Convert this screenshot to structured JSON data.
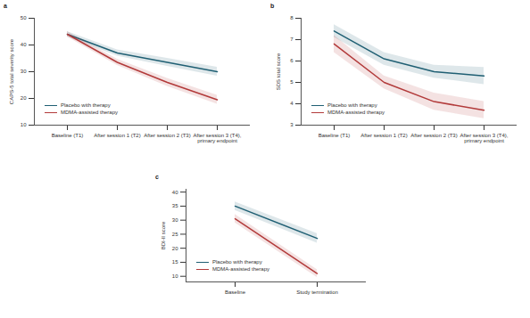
{
  "chart_data": [
    {
      "type": "line",
      "title": "a",
      "categories": [
        "Baseline (T1)",
        "After session 1 (T2)",
        "After session 2 (T3)",
        "After session 3 (T4), primary endpoint"
      ],
      "y_label": "CAPS-5 total severity score",
      "ylim": [
        10,
        50
      ],
      "yticks": [
        10,
        20,
        30,
        40,
        50
      ],
      "grid": false,
      "legend": "bottom-left",
      "series": [
        {
          "name": "Placebo with therapy",
          "color": "#1f5f73",
          "values": [
            44,
            37,
            33.5,
            30
          ],
          "lower": [
            43,
            35.8,
            32,
            28.3
          ],
          "upper": [
            45,
            38.2,
            35,
            31.7
          ]
        },
        {
          "name": "MDMA-assisted therapy",
          "color": "#b23a3a",
          "values": [
            44,
            33.5,
            26,
            19.5
          ],
          "lower": [
            43,
            32.3,
            24.5,
            17.8
          ],
          "upper": [
            45,
            34.7,
            27.5,
            21.2
          ]
        }
      ]
    },
    {
      "type": "line",
      "title": "b",
      "categories": [
        "Baseline (T1)",
        "After session 1 (T2)",
        "After session 2 (T3)",
        "After session 3 (T4), primary endpoint"
      ],
      "y_label": "SDS total score",
      "ylim": [
        3,
        8
      ],
      "yticks": [
        3,
        4,
        5,
        6,
        7,
        8
      ],
      "grid": false,
      "legend": "bottom-left",
      "series": [
        {
          "name": "Placebo with therapy",
          "color": "#1f5f73",
          "values": [
            7.4,
            6.1,
            5.5,
            5.3
          ],
          "lower": [
            7.1,
            5.8,
            5.2,
            4.9
          ],
          "upper": [
            7.7,
            6.4,
            5.8,
            5.7
          ]
        },
        {
          "name": "MDMA-assisted therapy",
          "color": "#b23a3a",
          "values": [
            6.8,
            5.0,
            4.1,
            3.7
          ],
          "lower": [
            6.4,
            4.7,
            3.7,
            3.3
          ],
          "upper": [
            7.2,
            5.3,
            4.5,
            4.1
          ]
        }
      ]
    },
    {
      "type": "line",
      "title": "c",
      "categories": [
        "Baseline",
        "Study termination"
      ],
      "y_label": "BDI-II score",
      "ylim": [
        8,
        41
      ],
      "yticks": [
        10,
        15,
        20,
        25,
        30,
        35,
        40
      ],
      "grid": false,
      "legend": "bottom-left",
      "series": [
        {
          "name": "Placebo with therapy",
          "color": "#1f5f73",
          "values": [
            35,
            23.5
          ],
          "lower": [
            33.5,
            21.8
          ],
          "upper": [
            36.5,
            25.2
          ]
        },
        {
          "name": "MDMA-assisted therapy",
          "color": "#b23a3a",
          "values": [
            30.5,
            11
          ],
          "lower": [
            29,
            9.6
          ],
          "upper": [
            32,
            12.4
          ]
        }
      ]
    }
  ]
}
